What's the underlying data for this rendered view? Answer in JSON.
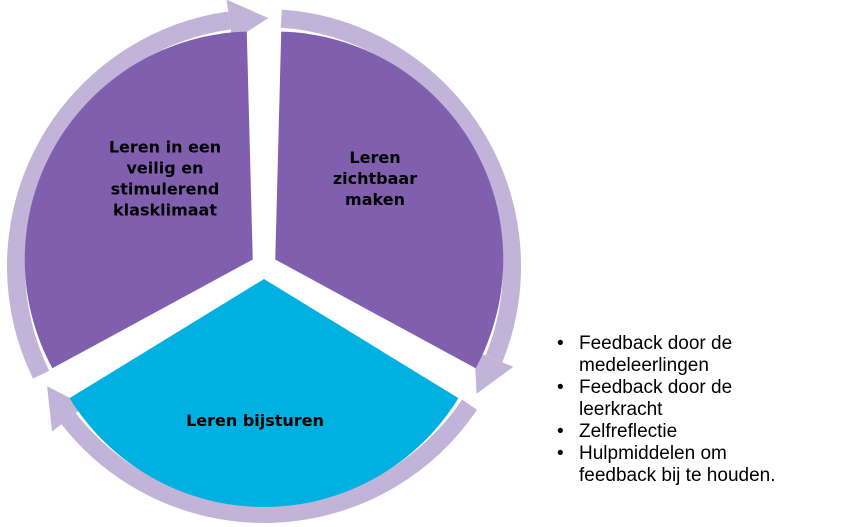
{
  "segments": [
    {
      "lines": [
        "Leren",
        "zichtbaar",
        "maken"
      ]
    },
    {
      "lines": [
        "Leren bijsturen"
      ]
    },
    {
      "lines": [
        "Leren in een",
        "veilig en",
        "stimulerend",
        "klasklimaat"
      ]
    }
  ],
  "bullets": [
    {
      "lines": [
        "Feedback door de",
        "medeleerlingen"
      ]
    },
    {
      "lines": [
        "Feedback door de",
        "leerkracht"
      ]
    },
    {
      "lines": [
        "Zelfreflectie"
      ]
    },
    {
      "lines": [
        "Hulpmiddelen om",
        "feedback bij te houden."
      ]
    }
  ]
}
